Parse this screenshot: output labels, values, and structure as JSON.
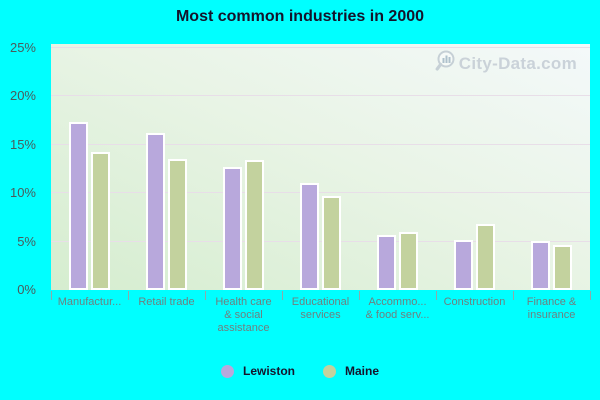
{
  "title": "Most common industries in 2000",
  "watermark": "City-Data.com",
  "colors": {
    "page_bg": "#00ffff",
    "plot_gradient_bottom_left": "#d5edcf",
    "plot_gradient_top_right": "#f4f9fa",
    "gridline": "#e8dee8",
    "x_axis_label": "#6e8080",
    "y_axis_label": "#4a5c5c",
    "title": "#14142b",
    "watermark": "#c6ced6",
    "lewiston": "#b8a8dc",
    "maine": "#c3d29e"
  },
  "chart_data": {
    "type": "bar",
    "title": "Most common industries in 2000",
    "categories": [
      "Manufactur...",
      "Retail trade",
      "Health care & social assistance",
      "Educational services",
      "Accommo... & food serv...",
      "Construction",
      "Finance & insurance"
    ],
    "category_display": [
      [
        "Manufactur..."
      ],
      [
        "Retail trade"
      ],
      [
        "Health care",
        "& social",
        "assistance"
      ],
      [
        "Educational",
        "services"
      ],
      [
        "Accommo...",
        "& food serv..."
      ],
      [
        "Construction"
      ],
      [
        "Finance &",
        "insurance"
      ]
    ],
    "series": [
      {
        "name": "Lewiston",
        "color": "#b8a8dc",
        "values": [
          17.3,
          16.2,
          12.7,
          11.0,
          5.7,
          5.2,
          5.1
        ]
      },
      {
        "name": "Maine",
        "color": "#c3d29e",
        "values": [
          14.3,
          13.5,
          13.4,
          9.7,
          6.0,
          6.8,
          4.6
        ]
      }
    ],
    "xlabel": "",
    "ylabel": "",
    "y_ticks": [
      "0%",
      "5%",
      "10%",
      "15%",
      "20%",
      "25%"
    ],
    "y_tick_values": [
      0,
      5,
      10,
      15,
      20,
      25
    ],
    "ylim": [
      0,
      25.4
    ],
    "grid": "horizontal",
    "legend_position": "bottom"
  }
}
